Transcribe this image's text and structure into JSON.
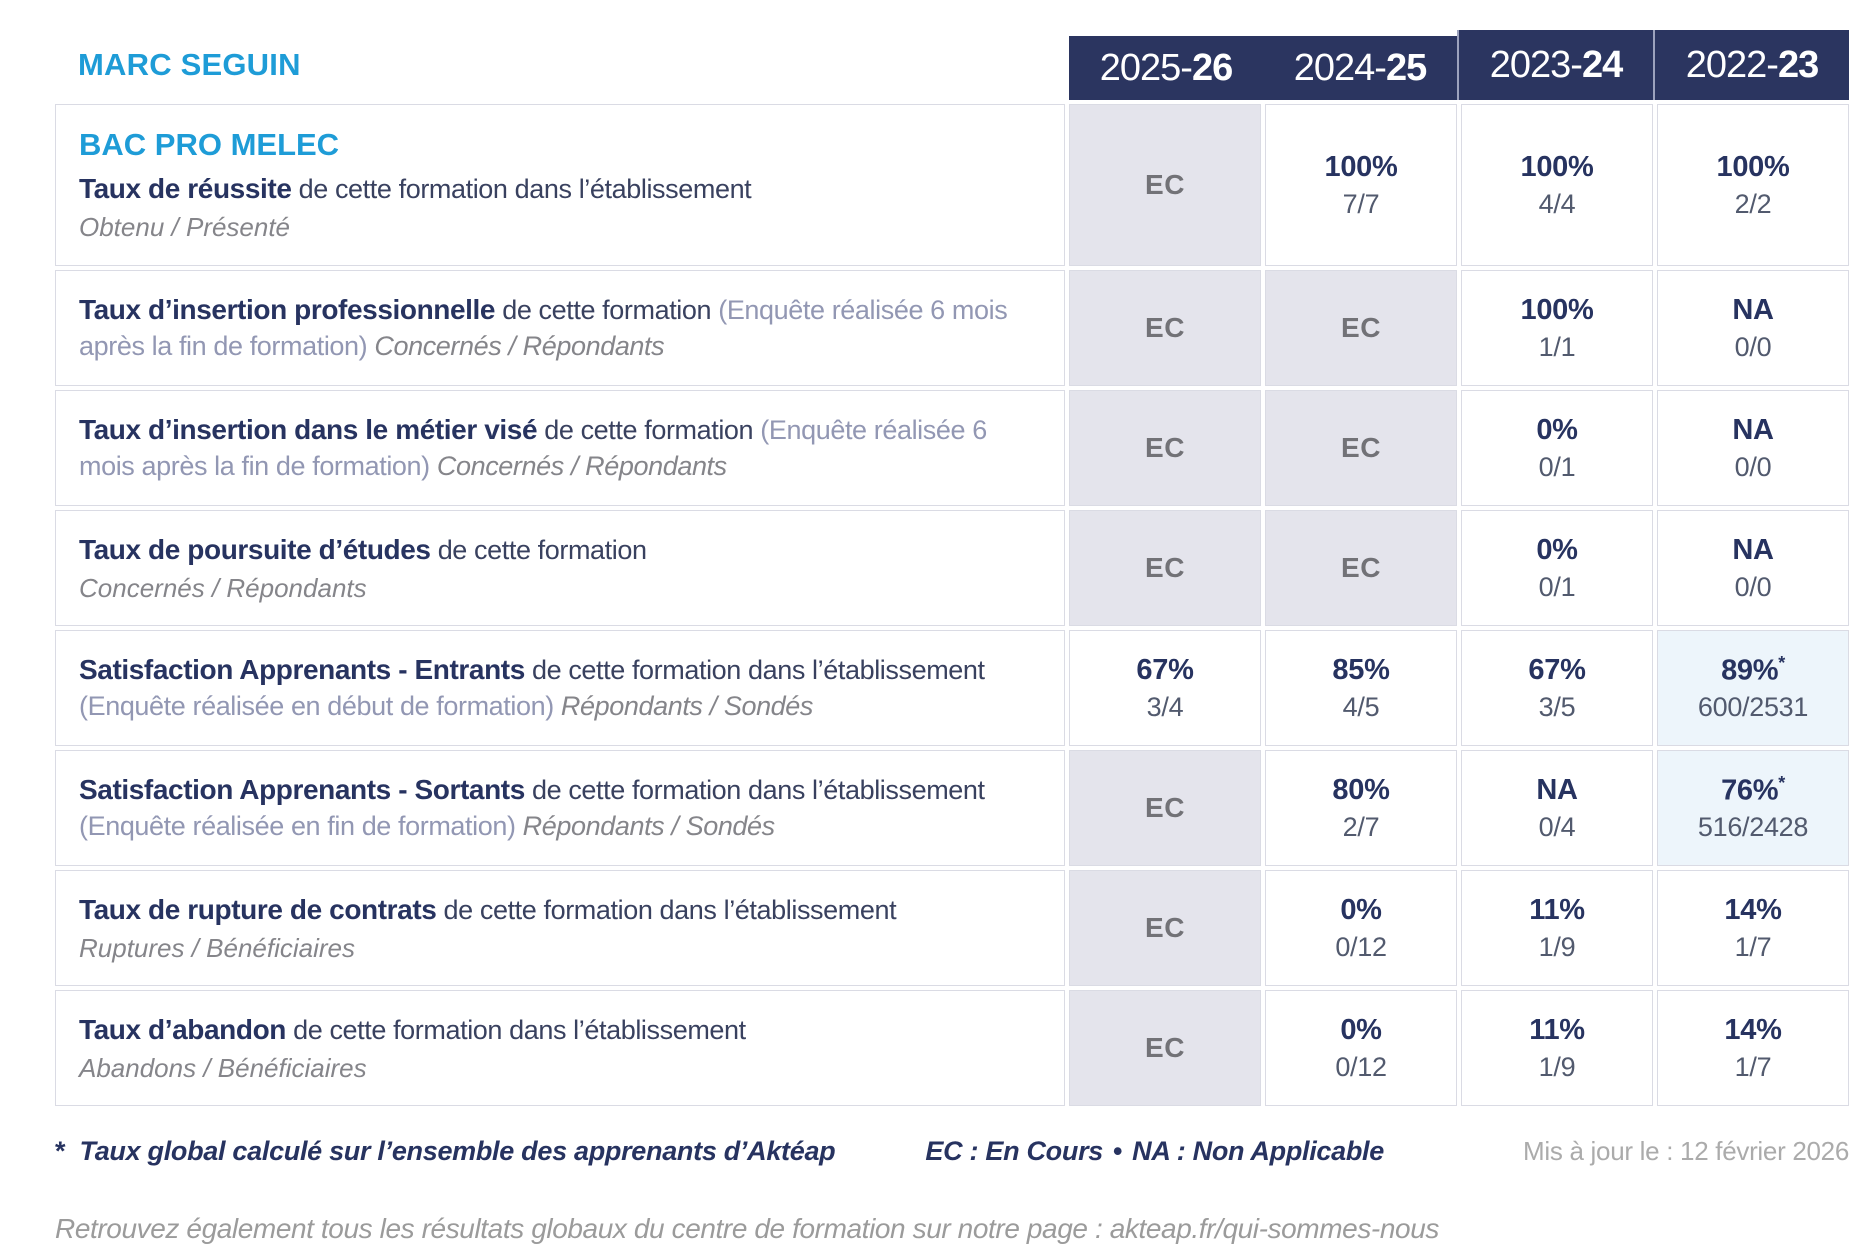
{
  "header": {
    "school": "MARC SEGUIN",
    "program": "BAC PRO MELEC",
    "columns": [
      {
        "prefix": "2025-",
        "suffix": "26"
      },
      {
        "prefix": "2024-",
        "suffix": "25"
      },
      {
        "prefix": "2023-",
        "suffix": "24"
      },
      {
        "prefix": "2022-",
        "suffix": "23"
      }
    ]
  },
  "rows": [
    {
      "title_bold": "Taux de réussite",
      "title_rest": "de cette formation dans l’établissement",
      "subtitle": "Obtenu / Présenté",
      "values": [
        {
          "label": "EC"
        },
        {
          "pct": "100%",
          "frac": "7/7"
        },
        {
          "pct": "100%",
          "frac": "4/4"
        },
        {
          "pct": "100%",
          "frac": "2/2"
        }
      ]
    },
    {
      "title_bold": "Taux d’insertion professionnelle",
      "title_rest": "de cette formation",
      "title_note": "(Enquête réalisée 6 mois après la fin de formation)",
      "subtitle": "Concernés / Répondants",
      "values": [
        {
          "label": "EC"
        },
        {
          "label": "EC"
        },
        {
          "pct": "100%",
          "frac": "1/1"
        },
        {
          "pct": "NA",
          "frac": "0/0"
        }
      ]
    },
    {
      "title_bold": "Taux d’insertion dans le métier visé",
      "title_rest": "de cette formation",
      "title_note": "(Enquête réalisée 6 mois après la fin de formation)",
      "subtitle": "Concernés / Répondants",
      "values": [
        {
          "label": "EC"
        },
        {
          "label": "EC"
        },
        {
          "pct": "0%",
          "frac": "0/1"
        },
        {
          "pct": "NA",
          "frac": "0/0"
        }
      ]
    },
    {
      "title_bold": "Taux de poursuite d’études",
      "title_rest": "de cette formation",
      "subtitle": "Concernés / Répondants",
      "values": [
        {
          "label": "EC"
        },
        {
          "label": "EC"
        },
        {
          "pct": "0%",
          "frac": "0/1"
        },
        {
          "pct": "NA",
          "frac": "0/0"
        }
      ]
    },
    {
      "title_bold": "Satisfaction Apprenants - Entrants",
      "title_rest": "de cette formation dans l’établissement",
      "title_note": "(Enquête réalisée en début de formation)",
      "subtitle": "Répondants / Sondés",
      "values": [
        {
          "pct": "67%",
          "frac": "3/4"
        },
        {
          "pct": "85%",
          "frac": "4/5"
        },
        {
          "pct": "67%",
          "frac": "3/5"
        },
        {
          "pct": "89%",
          "star": "*",
          "frac": "600/2531"
        }
      ]
    },
    {
      "title_bold": "Satisfaction Apprenants - Sortants",
      "title_rest": "de cette formation dans l’établissement",
      "title_note": "(Enquête réalisée en fin de formation)",
      "subtitle": "Répondants / Sondés",
      "values": [
        {
          "label": "EC"
        },
        {
          "pct": "80%",
          "frac": "2/7"
        },
        {
          "pct": "NA",
          "frac": "0/4"
        },
        {
          "pct": "76%",
          "star": "*",
          "frac": "516/2428"
        }
      ]
    },
    {
      "title_bold": "Taux de rupture de contrats",
      "title_rest": "de cette formation dans l’établissement",
      "subtitle": "Ruptures / Bénéficiaires",
      "values": [
        {
          "label": "EC"
        },
        {
          "pct": "0%",
          "frac": "0/12"
        },
        {
          "pct": "11%",
          "frac": "1/9"
        },
        {
          "pct": "14%",
          "frac": "1/7"
        }
      ]
    },
    {
      "title_bold": "Taux d’abandon",
      "title_rest": "de cette formation dans l’établissement",
      "subtitle": "Abandons / Bénéficiaires",
      "values": [
        {
          "label": "EC"
        },
        {
          "pct": "0%",
          "frac": "0/12"
        },
        {
          "pct": "11%",
          "frac": "1/9"
        },
        {
          "pct": "14%",
          "frac": "1/7"
        }
      ]
    }
  ],
  "footer": {
    "star": "*",
    "star_note": "Taux global calculé sur l’ensemble des apprenants d’Aktéap",
    "legend_ec": "EC : En Cours",
    "bullet": "•",
    "legend_na": "NA : Non Applicable",
    "updated": "Mis à jour le : 12 février 2026",
    "bottom_note": "Retrouvez également tous les résultats globaux du centre de formation sur notre page : akteap.fr/qui-sommes-nous"
  },
  "colors": {
    "accent_blue": "#1E9CD7",
    "navy": "#2B3560",
    "ec_cell_bg": "#E4E4EC",
    "star_cell_bg": "#EDF5FB"
  }
}
